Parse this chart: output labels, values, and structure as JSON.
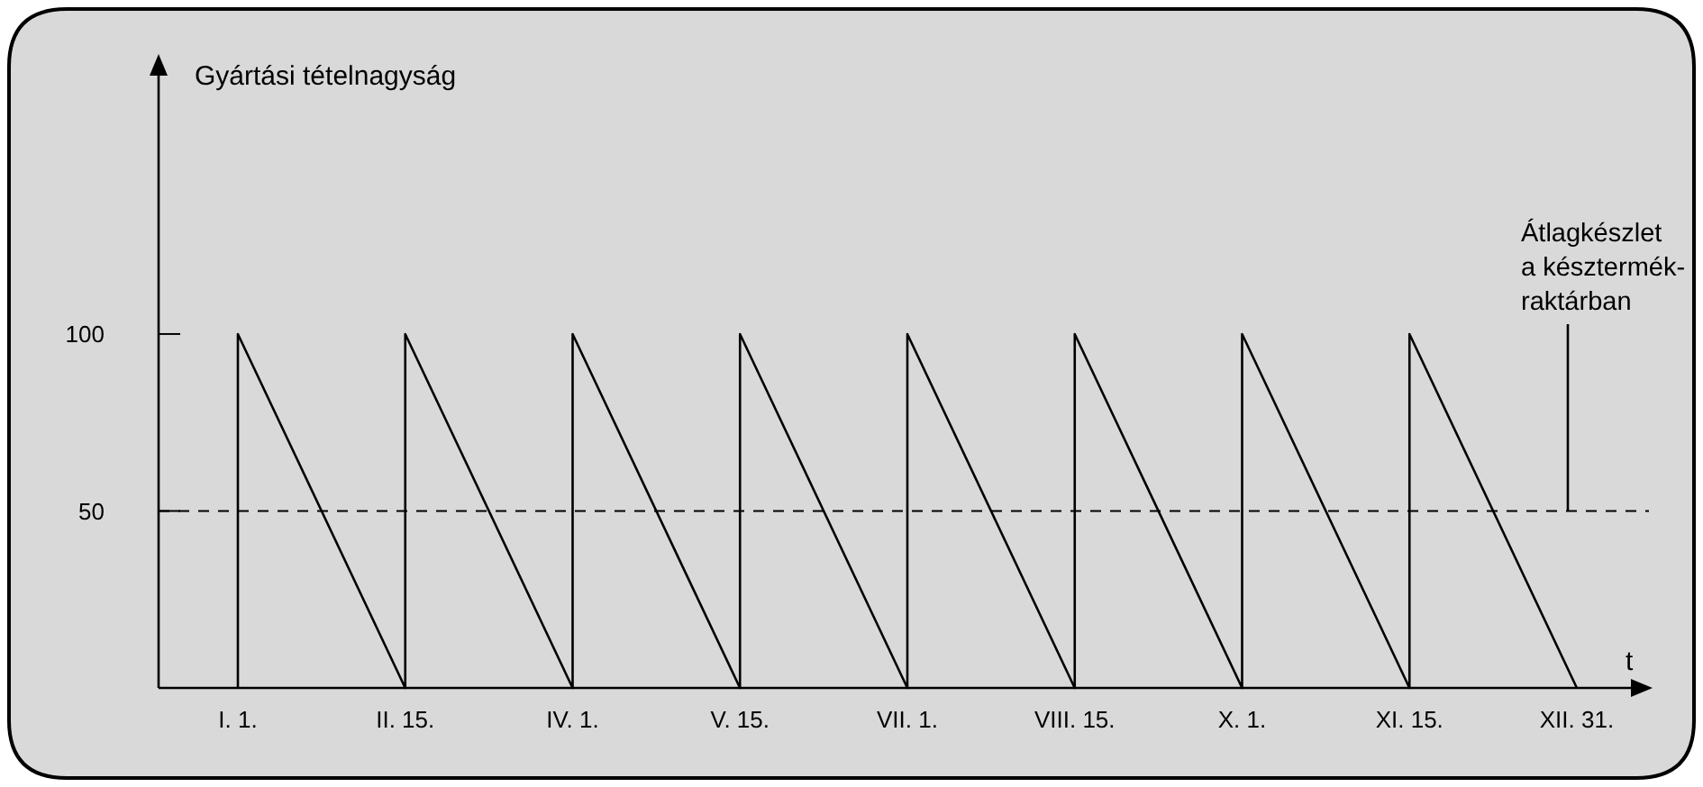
{
  "chart_data": {
    "type": "line",
    "ylabel": "Gyártási tételnagyság",
    "xlabel": "t",
    "categories": [
      "I. 1.",
      "II. 15.",
      "IV. 1.",
      "V. 15.",
      "VII. 1.",
      "VIII. 15.",
      "X. 1.",
      "XI. 15.",
      "XII. 31."
    ],
    "ylim": [
      0,
      173
    ],
    "yticks": [
      50,
      100
    ],
    "series": [
      {
        "color": "#000000",
        "x": [
          "I. 1.",
          "I. 1.",
          "II. 15.",
          "II. 15.",
          "IV. 1.",
          "IV. 1.",
          "V. 15.",
          "V. 15.",
          "VII. 1.",
          "VII. 1.",
          "VIII. 15.",
          "VIII. 15.",
          "X. 1.",
          "X. 1.",
          "XI. 15.",
          "XI. 15.",
          "XII. 31."
        ],
        "values": [
          0,
          100,
          0,
          100,
          0,
          100,
          0,
          100,
          0,
          100,
          0,
          100,
          0,
          100,
          0,
          100,
          0
        ]
      }
    ],
    "ref_lines": [
      {
        "axis": "y",
        "value": 50,
        "line_style": "dashed",
        "label": "Átlagkészlet\na késztermék-\nraktárban"
      }
    ],
    "grid": false,
    "marker": "none",
    "line_style": "solid"
  }
}
